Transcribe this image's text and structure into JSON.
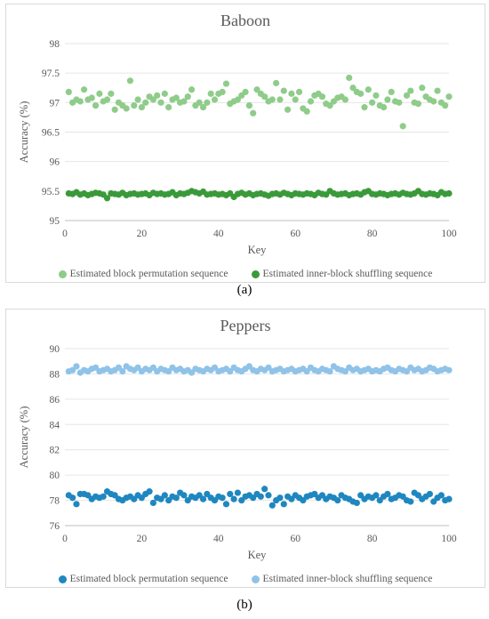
{
  "chart_data": [
    {
      "type": "scatter",
      "caption": "(a)",
      "title": "Baboon",
      "xlabel": "Key",
      "ylabel": "Accuracy (%)",
      "xlim": [
        0,
        100
      ],
      "ylim": [
        95,
        98
      ],
      "xticks": [
        0,
        20,
        40,
        60,
        80,
        100
      ],
      "yticks": [
        95,
        95.5,
        96,
        96.5,
        97,
        97.5,
        98
      ],
      "grid": "horizontal",
      "legend_position": "bottom",
      "series": [
        {
          "name": "Estimated block permutation sequence",
          "color": "#8fcc8a",
          "x": [
            1,
            2,
            3,
            4,
            5,
            6,
            7,
            8,
            9,
            10,
            11,
            12,
            13,
            14,
            15,
            16,
            17,
            18,
            19,
            20,
            21,
            22,
            23,
            24,
            25,
            26,
            27,
            28,
            29,
            30,
            31,
            32,
            33,
            34,
            35,
            36,
            37,
            38,
            39,
            40,
            41,
            42,
            43,
            44,
            45,
            46,
            47,
            48,
            49,
            50,
            51,
            52,
            53,
            54,
            55,
            56,
            57,
            58,
            59,
            60,
            61,
            62,
            63,
            64,
            65,
            66,
            67,
            68,
            69,
            70,
            71,
            72,
            73,
            74,
            75,
            76,
            77,
            78,
            79,
            80,
            81,
            82,
            83,
            84,
            85,
            86,
            87,
            88,
            89,
            90,
            91,
            92,
            93,
            94,
            95,
            96,
            97,
            98,
            99,
            100
          ],
          "y": [
            97.18,
            97.0,
            97.05,
            97.02,
            97.22,
            97.05,
            97.08,
            96.95,
            97.15,
            97.02,
            97.05,
            97.15,
            96.88,
            97.0,
            96.95,
            96.9,
            97.37,
            96.95,
            97.05,
            96.92,
            97.0,
            97.1,
            97.05,
            97.12,
            97.0,
            97.15,
            96.92,
            97.05,
            97.08,
            97.0,
            97.02,
            97.1,
            97.22,
            96.95,
            97.0,
            96.92,
            97.0,
            97.15,
            97.05,
            97.15,
            97.18,
            97.32,
            96.98,
            97.02,
            97.05,
            97.12,
            97.18,
            96.95,
            96.82,
            97.22,
            97.15,
            97.1,
            97.02,
            97.05,
            97.33,
            97.05,
            97.2,
            96.88,
            97.15,
            97.05,
            97.18,
            96.9,
            96.85,
            97.02,
            97.12,
            97.15,
            97.1,
            96.98,
            96.95,
            97.02,
            97.08,
            97.1,
            97.05,
            97.42,
            97.25,
            97.18,
            97.15,
            96.92,
            97.22,
            97.0,
            97.12,
            96.95,
            96.92,
            97.05,
            97.18,
            97.02,
            97.0,
            96.6,
            97.12,
            97.2,
            97.0,
            96.98,
            97.25,
            97.1,
            97.05,
            97.02,
            97.2,
            97.0,
            96.95,
            97.1
          ]
        },
        {
          "name": "Estimated inner-block shuffling sequence",
          "color": "#3a9a3a",
          "x": [
            1,
            2,
            3,
            4,
            5,
            6,
            7,
            8,
            9,
            10,
            11,
            12,
            13,
            14,
            15,
            16,
            17,
            18,
            19,
            20,
            21,
            22,
            23,
            24,
            25,
            26,
            27,
            28,
            29,
            30,
            31,
            32,
            33,
            34,
            35,
            36,
            37,
            38,
            39,
            40,
            41,
            42,
            43,
            44,
            45,
            46,
            47,
            48,
            49,
            50,
            51,
            52,
            53,
            54,
            55,
            56,
            57,
            58,
            59,
            60,
            61,
            62,
            63,
            64,
            65,
            66,
            67,
            68,
            69,
            70,
            71,
            72,
            73,
            74,
            75,
            76,
            77,
            78,
            79,
            80,
            81,
            82,
            83,
            84,
            85,
            86,
            87,
            88,
            89,
            90,
            91,
            92,
            93,
            94,
            95,
            96,
            97,
            98,
            99,
            100
          ],
          "y": [
            95.46,
            95.45,
            95.48,
            95.44,
            95.46,
            95.43,
            95.45,
            95.47,
            95.46,
            95.44,
            95.38,
            95.46,
            95.45,
            95.44,
            95.47,
            95.43,
            95.45,
            95.46,
            95.44,
            95.45,
            95.46,
            95.43,
            95.47,
            95.45,
            95.46,
            95.44,
            95.45,
            95.48,
            95.43,
            95.46,
            95.45,
            95.47,
            95.5,
            95.48,
            95.46,
            95.49,
            95.44,
            95.45,
            95.46,
            95.44,
            95.45,
            95.43,
            95.46,
            95.4,
            95.45,
            95.47,
            95.44,
            95.46,
            95.43,
            95.45,
            95.46,
            95.44,
            95.42,
            95.45,
            95.46,
            95.44,
            95.47,
            95.45,
            95.43,
            95.46,
            95.45,
            95.44,
            95.46,
            95.45,
            95.43,
            95.47,
            95.45,
            95.44,
            95.5,
            95.46,
            95.44,
            95.45,
            95.46,
            95.43,
            95.45,
            95.46,
            95.44,
            95.48,
            95.5,
            95.45,
            95.44,
            95.46,
            95.45,
            95.43,
            95.45,
            95.46,
            95.44,
            95.47,
            95.45,
            95.44,
            95.46,
            95.5,
            95.45,
            95.44,
            95.46,
            95.45,
            95.43,
            95.48,
            95.45,
            95.46
          ]
        }
      ]
    },
    {
      "type": "scatter",
      "caption": "(b)",
      "title": "Peppers",
      "xlabel": "Key",
      "ylabel": "Accuracy (%)",
      "xlim": [
        0,
        100
      ],
      "ylim": [
        76,
        90
      ],
      "xticks": [
        0,
        20,
        40,
        60,
        80,
        100
      ],
      "yticks": [
        76,
        78,
        80,
        82,
        84,
        86,
        88,
        90
      ],
      "grid": "horizontal",
      "legend_position": "bottom",
      "series": [
        {
          "name": "Estimated block permutation sequence",
          "color": "#1f87c0",
          "x": [
            1,
            2,
            3,
            4,
            5,
            6,
            7,
            8,
            9,
            10,
            11,
            12,
            13,
            14,
            15,
            16,
            17,
            18,
            19,
            20,
            21,
            22,
            23,
            24,
            25,
            26,
            27,
            28,
            29,
            30,
            31,
            32,
            33,
            34,
            35,
            36,
            37,
            38,
            39,
            40,
            41,
            42,
            43,
            44,
            45,
            46,
            47,
            48,
            49,
            50,
            51,
            52,
            53,
            54,
            55,
            56,
            57,
            58,
            59,
            60,
            61,
            62,
            63,
            64,
            65,
            66,
            67,
            68,
            69,
            70,
            71,
            72,
            73,
            74,
            75,
            76,
            77,
            78,
            79,
            80,
            81,
            82,
            83,
            84,
            85,
            86,
            87,
            88,
            89,
            90,
            91,
            92,
            93,
            94,
            95,
            96,
            97,
            98,
            99,
            100
          ],
          "y": [
            78.4,
            78.2,
            77.7,
            78.5,
            78.5,
            78.4,
            78.1,
            78.3,
            78.2,
            78.3,
            78.7,
            78.5,
            78.4,
            78.1,
            78.0,
            78.2,
            78.3,
            78.1,
            78.4,
            78.2,
            78.5,
            78.7,
            77.8,
            78.2,
            78.1,
            78.4,
            78.0,
            78.3,
            78.2,
            78.6,
            78.4,
            78.0,
            78.3,
            78.2,
            78.4,
            78.1,
            78.5,
            78.2,
            78.0,
            78.3,
            78.2,
            77.7,
            78.5,
            78.1,
            78.6,
            78.0,
            78.3,
            78.4,
            78.2,
            78.5,
            78.3,
            78.9,
            78.4,
            77.6,
            78.0,
            78.2,
            77.7,
            78.3,
            78.1,
            78.4,
            78.2,
            78.0,
            78.3,
            78.4,
            78.5,
            78.2,
            78.4,
            78.1,
            78.3,
            78.2,
            78.0,
            78.4,
            78.2,
            78.1,
            77.9,
            77.8,
            78.4,
            78.1,
            78.3,
            78.2,
            78.4,
            78.0,
            78.3,
            78.5,
            78.1,
            78.2,
            78.4,
            78.3,
            78.0,
            77.9,
            78.6,
            78.4,
            78.1,
            78.3,
            78.5,
            77.9,
            78.2,
            78.4,
            78.0,
            78.1
          ]
        },
        {
          "name": "Estimated inner-block shuffling sequence",
          "color": "#8fc3e8",
          "x": [
            1,
            2,
            3,
            4,
            5,
            6,
            7,
            8,
            9,
            10,
            11,
            12,
            13,
            14,
            15,
            16,
            17,
            18,
            19,
            20,
            21,
            22,
            23,
            24,
            25,
            26,
            27,
            28,
            29,
            30,
            31,
            32,
            33,
            34,
            35,
            36,
            37,
            38,
            39,
            40,
            41,
            42,
            43,
            44,
            45,
            46,
            47,
            48,
            49,
            50,
            51,
            52,
            53,
            54,
            55,
            56,
            57,
            58,
            59,
            60,
            61,
            62,
            63,
            64,
            65,
            66,
            67,
            68,
            69,
            70,
            71,
            72,
            73,
            74,
            75,
            76,
            77,
            78,
            79,
            80,
            81,
            82,
            83,
            84,
            85,
            86,
            87,
            88,
            89,
            90,
            91,
            92,
            93,
            94,
            95,
            96,
            97,
            98,
            99,
            100
          ],
          "y": [
            88.2,
            88.3,
            88.6,
            88.1,
            88.3,
            88.2,
            88.4,
            88.5,
            88.2,
            88.3,
            88.4,
            88.2,
            88.3,
            88.5,
            88.2,
            88.6,
            88.4,
            88.3,
            88.5,
            88.2,
            88.4,
            88.3,
            88.5,
            88.2,
            88.4,
            88.3,
            88.2,
            88.5,
            88.3,
            88.4,
            88.2,
            88.3,
            88.1,
            88.4,
            88.3,
            88.2,
            88.4,
            88.3,
            88.5,
            88.2,
            88.3,
            88.4,
            88.2,
            88.5,
            88.3,
            88.2,
            88.4,
            88.6,
            88.3,
            88.2,
            88.4,
            88.3,
            88.5,
            88.2,
            88.3,
            88.4,
            88.2,
            88.3,
            88.4,
            88.2,
            88.3,
            88.4,
            88.2,
            88.5,
            88.3,
            88.2,
            88.4,
            88.3,
            88.2,
            88.6,
            88.4,
            88.3,
            88.2,
            88.5,
            88.3,
            88.4,
            88.2,
            88.3,
            88.4,
            88.2,
            88.3,
            88.2,
            88.4,
            88.5,
            88.3,
            88.2,
            88.4,
            88.3,
            88.2,
            88.5,
            88.3,
            88.4,
            88.2,
            88.3,
            88.5,
            88.4,
            88.2,
            88.3,
            88.4,
            88.3
          ]
        }
      ]
    }
  ]
}
